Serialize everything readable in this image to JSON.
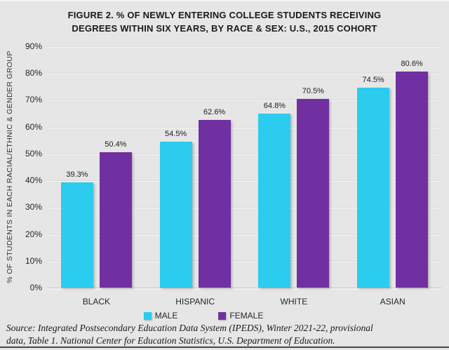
{
  "figure": {
    "title_line1": "FIGURE 2. % OF NEWLY ENTERING COLLEGE STUDENTS RECEIVING",
    "title_line2": "DEGREES WITHIN SIX YEARS, BY RACE & SEX: U.S., 2015 COHORT"
  },
  "chart_data": {
    "type": "bar",
    "title": "FIGURE 2. % OF NEWLY ENTERING COLLEGE STUDENTS RECEIVING DEGREES WITHIN SIX YEARS, BY RACE & SEX: U.S., 2015 COHORT",
    "categories": [
      "BLACK",
      "HISPANIC",
      "WHITE",
      "ASIAN"
    ],
    "series": [
      {
        "name": "MALE",
        "color": "#2bccee",
        "values": [
          39.3,
          54.5,
          64.8,
          74.5
        ]
      },
      {
        "name": "FEMALE",
        "color": "#7130a1",
        "values": [
          50.4,
          62.6,
          70.5,
          80.6
        ]
      }
    ],
    "value_suffix": "%",
    "xlabel": "",
    "ylabel": "% OF STUDENTS IN EACH RACIAL/ETHNIC & GENDER GROUP",
    "ylim": [
      0,
      90
    ],
    "ytick_step": 10,
    "grid": true,
    "legend_position": "bottom",
    "background_color": "#e7e6e6"
  },
  "source": {
    "line1": "Source: Integrated Postsecondary Education Data System (IPEDS), Winter 2021-22, provisional",
    "line2": "data, Table 1. National Center for Education Statistics, U.S. Department of Education."
  }
}
